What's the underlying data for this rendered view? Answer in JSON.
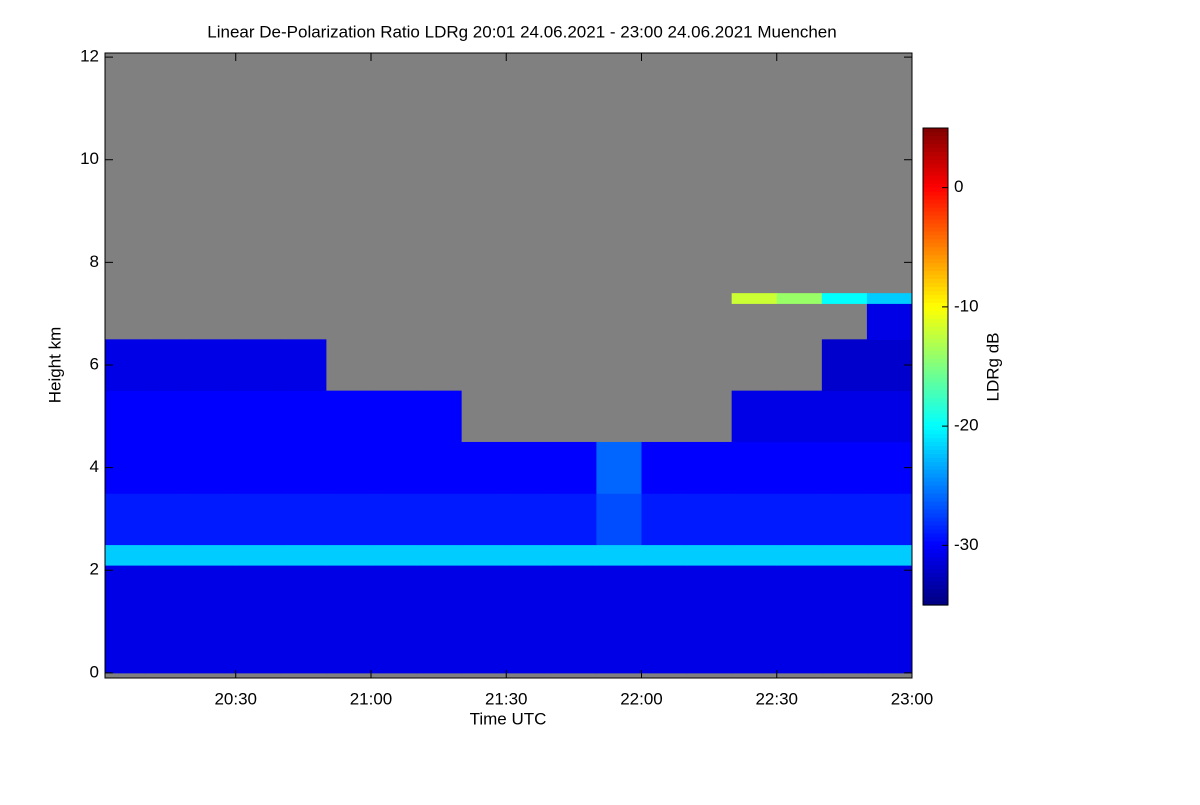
{
  "chart_data": {
    "type": "heatmap",
    "title": "Linear De-Polarization Ratio LDRg   20:01 24.06.2021 - 23:00 24.06.2021 Muenchen",
    "xlabel": "Time UTC",
    "ylabel": "Height km",
    "colorbar_label": "LDRg dB",
    "xlim": [
      20.0167,
      23.0
    ],
    "ylim": [
      -0.1,
      12.08
    ],
    "zlim": [
      -35,
      5
    ],
    "xticks": [
      {
        "value": 20.5,
        "label": "20:30"
      },
      {
        "value": 21.0,
        "label": "21:00"
      },
      {
        "value": 21.5,
        "label": "21:30"
      },
      {
        "value": 22.0,
        "label": "22:00"
      },
      {
        "value": 22.5,
        "label": "22:30"
      },
      {
        "value": 23.0,
        "label": "23:00"
      }
    ],
    "yticks": [
      0,
      2,
      4,
      6,
      8,
      10,
      12
    ],
    "zticks": [
      0,
      -10,
      -20,
      -30
    ],
    "missing_color": "#808080",
    "colormap": "jet",
    "x_edges": [
      20.0167,
      20.1667,
      20.3333,
      20.5,
      20.6667,
      20.8333,
      21.0,
      21.1667,
      21.3333,
      21.5,
      21.6667,
      21.8333,
      22.0,
      22.1667,
      22.3333,
      22.5,
      22.6667,
      22.8333,
      23.0
    ],
    "y_edges": [
      0,
      2.1,
      2.5,
      3.5,
      4.5,
      5.5,
      6.5,
      7.2,
      7.4,
      12
    ],
    "z": [
      [
        -31,
        -31,
        -31,
        -31,
        -31,
        -31,
        -31,
        -31,
        -31,
        -31,
        -31,
        -31,
        -31,
        -31,
        -31,
        -31,
        -31,
        -31
      ],
      [
        -22,
        -22,
        -22,
        -22,
        -22,
        -22,
        -22,
        -22,
        -22,
        -22,
        -22,
        -22,
        -22,
        -22,
        -22,
        -22,
        -22,
        -22
      ],
      [
        -29,
        -29,
        -29,
        -29,
        -29,
        -29,
        -29,
        -29,
        -29,
        -29,
        -29,
        -27,
        -29,
        -29,
        -29,
        -29,
        -29,
        -29
      ],
      [
        -30,
        -30,
        -30,
        -30,
        -30,
        -30,
        -30,
        -30,
        -30,
        -30,
        -30,
        -26,
        -30,
        -30,
        -30,
        -30,
        -30,
        -30
      ],
      [
        -30,
        -30,
        -30,
        -30,
        -30,
        -30,
        -30,
        -30,
        null,
        null,
        null,
        null,
        null,
        null,
        -31,
        -31,
        -31,
        -31
      ],
      [
        -31,
        -31,
        -31,
        -31,
        -31,
        null,
        null,
        null,
        null,
        null,
        null,
        null,
        null,
        null,
        null,
        null,
        -32,
        -32
      ],
      [
        null,
        null,
        null,
        null,
        null,
        null,
        null,
        null,
        null,
        null,
        null,
        null,
        null,
        null,
        null,
        null,
        null,
        -31
      ],
      [
        null,
        null,
        null,
        null,
        null,
        null,
        null,
        null,
        null,
        null,
        null,
        null,
        null,
        null,
        -12,
        -14,
        -20,
        -22
      ],
      [
        null,
        null,
        null,
        null,
        null,
        null,
        null,
        null,
        null,
        null,
        null,
        null,
        null,
        null,
        null,
        null,
        null,
        null
      ]
    ]
  }
}
